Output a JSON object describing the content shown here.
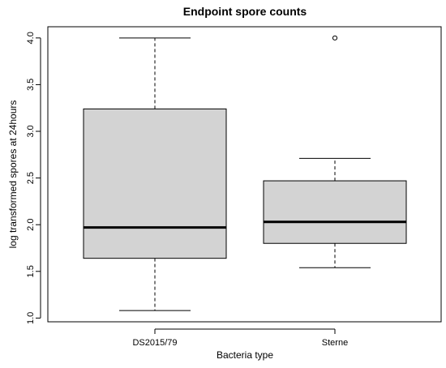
{
  "chart_data": {
    "type": "boxplot",
    "title": "Endpoint spore counts",
    "xlabel": "Bacteria type",
    "ylabel": "log transformed spores at 24hours",
    "ylim": [
      0.96,
      4.12
    ],
    "yticks": [
      1.0,
      1.5,
      2.0,
      2.5,
      3.0,
      3.5,
      4.0
    ],
    "ytick_labels": [
      "1.0",
      "1.5",
      "2.0",
      "2.5",
      "3.0",
      "3.5",
      "4.0"
    ],
    "categories": [
      "DS2015/79",
      "Sterne"
    ],
    "boxes": [
      {
        "category": "DS2015/79",
        "whisker_low": 1.08,
        "q1": 1.64,
        "median": 1.97,
        "q3": 3.24,
        "whisker_high": 4.0,
        "outliers": []
      },
      {
        "category": "Sterne",
        "whisker_low": 1.54,
        "q1": 1.8,
        "median": 2.03,
        "q3": 2.47,
        "whisker_high": 2.71,
        "outliers": [
          4.0
        ]
      }
    ],
    "box_fill": "#d3d3d3",
    "grid": false,
    "legend": "none"
  }
}
